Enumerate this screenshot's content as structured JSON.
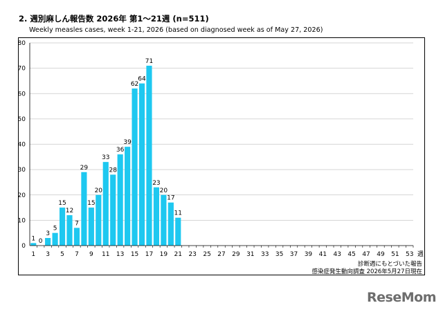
{
  "header": {
    "title": "2. 週別麻しん報告数 2026年 第1～21週 (n=511)",
    "subtitle": "Weekly measles cases, week 1-21, 2026 (based on diagnosed week as of May 27, 2026)"
  },
  "notes": {
    "line1": "診断週にもとづいた報告",
    "line2": "感染症発生動向調査 2026年5月27日現在"
  },
  "logo": {
    "text": "ReseMom"
  },
  "chart_data": {
    "type": "bar",
    "x_unit_label": "週",
    "ylim": [
      0,
      80
    ],
    "yticks": [
      0,
      10,
      20,
      30,
      40,
      50,
      60,
      70,
      80
    ],
    "xlim": [
      1,
      53
    ],
    "xtick_labels": [
      1,
      3,
      5,
      7,
      9,
      11,
      13,
      15,
      17,
      19,
      21,
      23,
      25,
      27,
      29,
      31,
      33,
      35,
      37,
      39,
      41,
      43,
      45,
      47,
      49,
      51,
      53
    ],
    "grid": true,
    "bar_color": "#1ec8f0",
    "categories": [
      1,
      2,
      3,
      4,
      5,
      6,
      7,
      8,
      9,
      10,
      11,
      12,
      13,
      14,
      15,
      16,
      17,
      18,
      19,
      20,
      21
    ],
    "values": [
      1,
      0,
      3,
      5,
      15,
      12,
      7,
      29,
      15,
      20,
      33,
      28,
      36,
      39,
      62,
      64,
      71,
      23,
      20,
      17,
      11
    ]
  }
}
